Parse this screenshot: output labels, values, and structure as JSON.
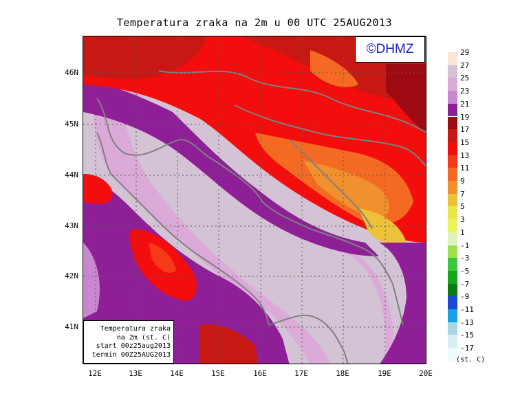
{
  "title": "Temperatura zraka na 2m u 00 UTC 25AUG2013",
  "logo_text": "©DHMZ",
  "info_box": {
    "line1": "Temperatura zraka",
    "line2": "na 2m (st. C)",
    "line3": "start 00z25aug2013",
    "line4": "termin 00Z25AUG2013"
  },
  "y_axis": {
    "labels": [
      "46N",
      "45N",
      "44N",
      "43N",
      "42N",
      "41N"
    ]
  },
  "x_axis": {
    "labels": [
      "12E",
      "13E",
      "14E",
      "15E",
      "16E",
      "17E",
      "18E",
      "19E",
      "20E"
    ]
  },
  "legend": {
    "unit": "(st. C)",
    "labels": [
      "29",
      "27",
      "25",
      "23",
      "21",
      "19",
      "17",
      "15",
      "13",
      "11",
      "9",
      "7",
      "5",
      "3",
      "1",
      "-1",
      "-3",
      "-5",
      "-7",
      "-9",
      "-11",
      "-13",
      "-15",
      "-17"
    ],
    "colors": [
      "#fbe6d8",
      "#d3c3d5",
      "#dcaad8",
      "#c987cf",
      "#8e1f96",
      "#9e0a12",
      "#c81814",
      "#f30d0d",
      "#f53a17",
      "#f56a22",
      "#f0902e",
      "#ecc238",
      "#eae748",
      "#e9f55a",
      "#e2f2be",
      "#9ce04c",
      "#3ac440",
      "#14a61c",
      "#0b7b13",
      "#1848d8",
      "#18a2e2",
      "#a9d7e5",
      "#d6eef4",
      "#eefcfd"
    ]
  }
}
